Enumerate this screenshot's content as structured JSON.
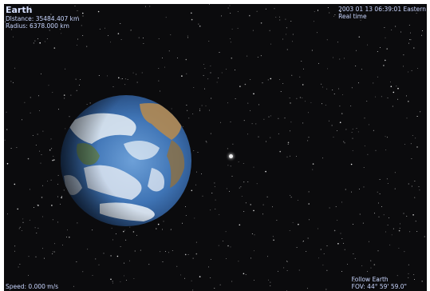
{
  "app": {
    "target_name": "Earth",
    "distance": "Distance: 35484.407 km",
    "radius": "Radius: 6378.000 km",
    "datetime": "2003 01 13 06:39:01 Eastern",
    "time_mode": "Real time",
    "speed": "Speed: 0.000 m/s",
    "follow": "Follow Earth",
    "fov": "FOV: 44° 59' 59.0\""
  },
  "colors": {
    "space": "#0b0b0d",
    "hud_text": "#c9d6ff",
    "ocean": "#3f74b5",
    "cloud": "#e8eef5"
  }
}
